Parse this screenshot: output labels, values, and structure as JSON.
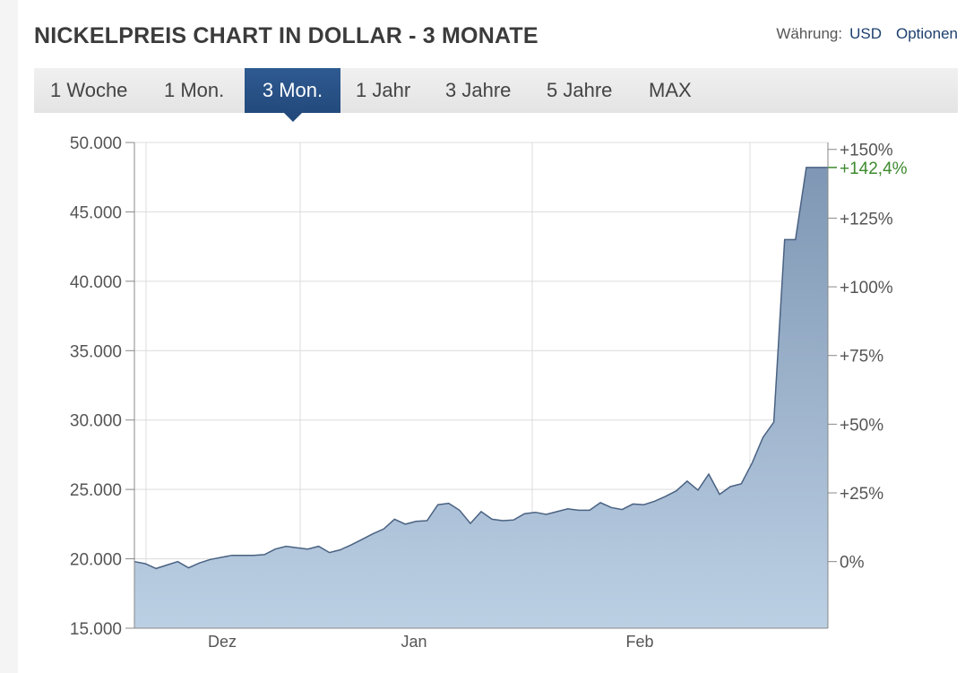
{
  "header": {
    "title": "NICKELPREIS CHART IN DOLLAR - 3 MONATE",
    "currency_label": "Währung:",
    "currency_value": "USD",
    "options_label": "Optionen"
  },
  "tabs": [
    {
      "label": "1 Woche",
      "active": false
    },
    {
      "label": "1 Mon.",
      "active": false
    },
    {
      "label": "3 Mon.",
      "active": true
    },
    {
      "label": "1 Jahr",
      "active": false
    },
    {
      "label": "3 Jahre",
      "active": false
    },
    {
      "label": "5 Jahre",
      "active": false
    },
    {
      "label": "MAX",
      "active": false
    }
  ],
  "colors": {
    "line": "#4a6282",
    "fill_top": "#7f97b4",
    "fill_bottom": "#bcd0e4",
    "grid": "#dcdcdc",
    "current_marker": "#3d8a2e",
    "active_tab": "#2a5286"
  },
  "chart_data": {
    "type": "area",
    "title": "NICKELPREIS CHART IN DOLLAR - 3 MONATE",
    "xlabel": "",
    "ylabel": "",
    "ylim": [
      15000,
      50000
    ],
    "yticks": [
      "50.000",
      "45.000",
      "40.000",
      "35.000",
      "30.000",
      "25.000",
      "20.000",
      "15.000"
    ],
    "y2ticks": [
      "+150%",
      "+125%",
      "+100%",
      "+75%",
      "+50%",
      "+25%",
      "0%"
    ],
    "x_labels": [
      "Dez",
      "Jan",
      "Feb"
    ],
    "current_change_label": "+142,4%",
    "grid": true,
    "series": [
      {
        "values": [
          19800,
          19650,
          19300,
          19550,
          19800,
          19350,
          19700,
          19950,
          20100,
          20250,
          20250,
          20250,
          20300,
          20700,
          20900,
          20800,
          20700,
          20900,
          20450,
          20650,
          21000,
          21400,
          21800,
          22150,
          22850,
          22500,
          22700,
          22750,
          23900,
          24000,
          23500,
          22550,
          23400,
          22850,
          22750,
          22800,
          23250,
          23350,
          23200,
          23400,
          23600,
          23500,
          23500,
          24050,
          23700,
          23550,
          23950,
          23900,
          24150,
          24500,
          24900,
          25600,
          24950,
          26100,
          24650,
          25200,
          25400,
          26900,
          28750,
          29850,
          43000,
          43000,
          48200,
          48200
        ]
      }
    ]
  }
}
